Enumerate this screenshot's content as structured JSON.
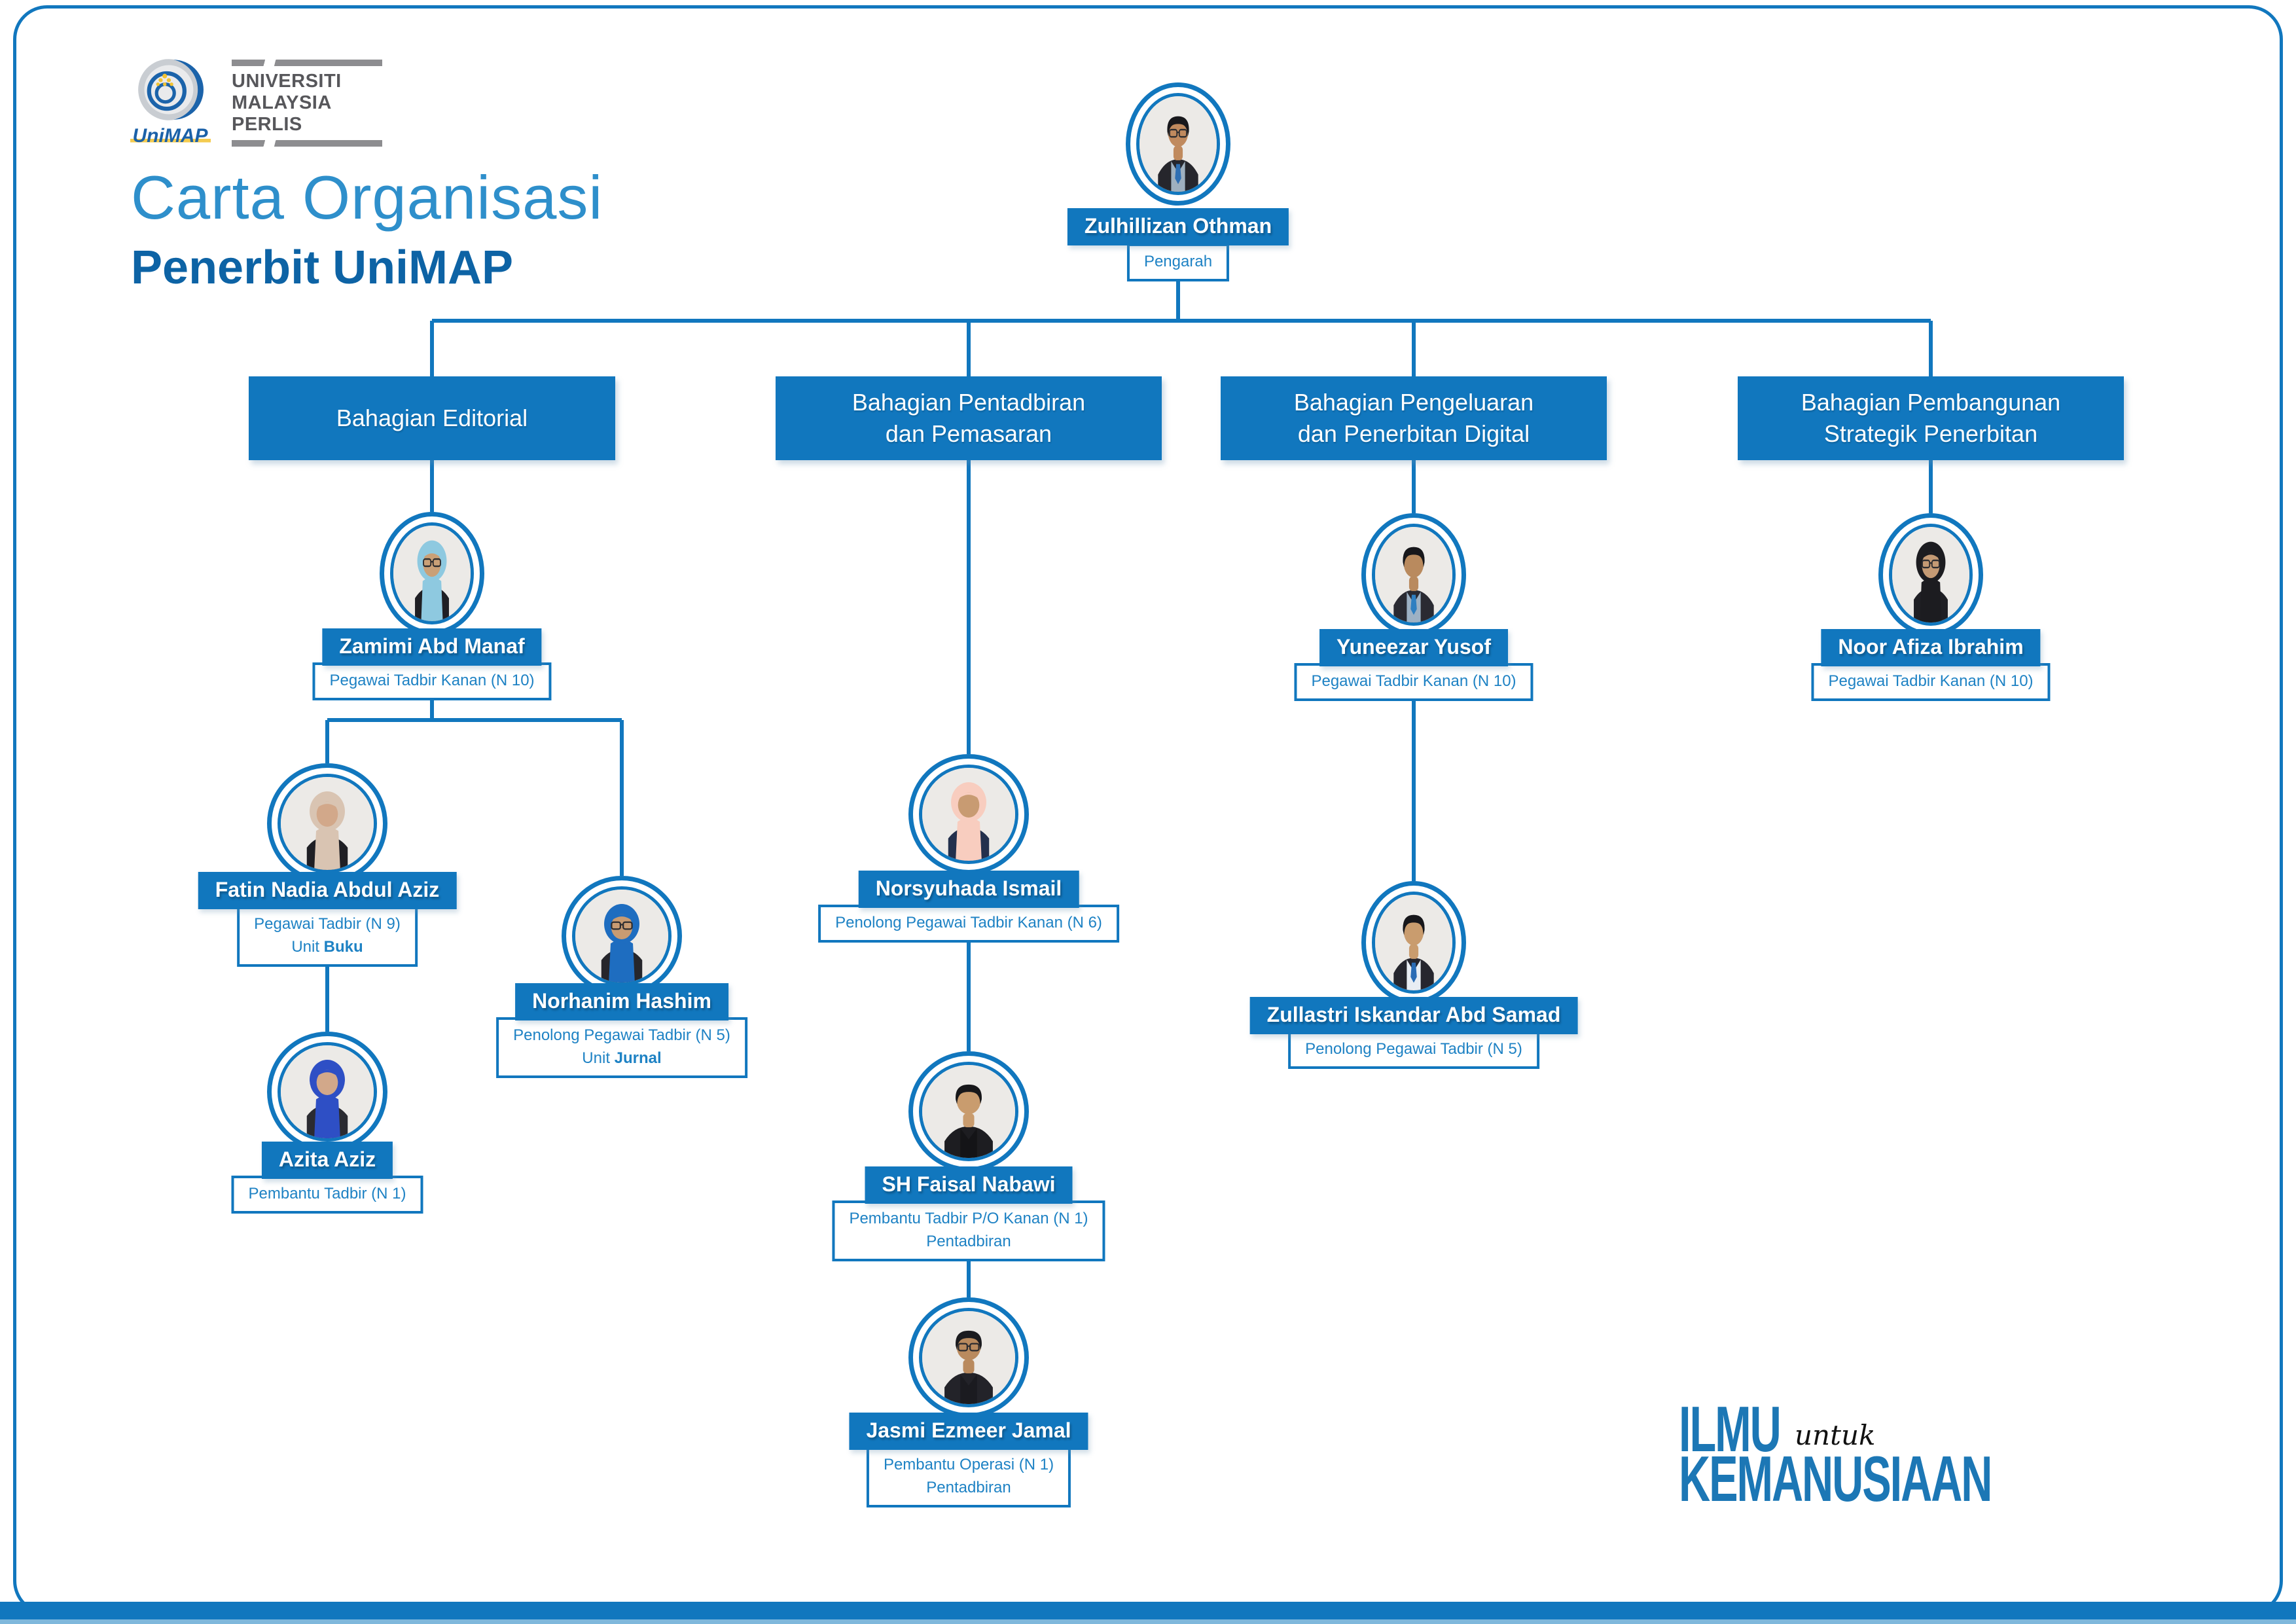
{
  "theme": {
    "blue": "#1177BE",
    "roletext": "#1E82C4",
    "title1": "#2E8FCB",
    "title2": "#0D63A5",
    "tagline": "#1C77B5",
    "logogray": "#57575B"
  },
  "logo": {
    "brand": "UniMAP",
    "line1": "UNIVERSITI",
    "line2": "MALAYSIA",
    "line3": "PERLIS"
  },
  "header": {
    "title": "Carta Organisasi",
    "subtitle": "Penerbit UniMAP"
  },
  "org": {
    "root": {
      "name": "Zulhillizan Othman",
      "role": "Pengarah",
      "avatar": {
        "kind": "man",
        "glasses": true,
        "skin": "#c08a5e",
        "hair": "#18181c",
        "suit": "#26262c",
        "shirt": "#9fb0bf",
        "tie": "#2f6fb3"
      }
    },
    "departments": [
      {
        "line1": "Bahagian Editorial",
        "line2": ""
      },
      {
        "line1": "Bahagian Pentadbiran",
        "line2": "dan Pemasaran"
      },
      {
        "line1": "Bahagian Pengeluaran",
        "line2": "dan Penerbitan Digital"
      },
      {
        "line1": "Bahagian Pembangunan",
        "line2": "Strategik Penerbitan"
      }
    ],
    "people": {
      "zamimi": {
        "name": "Zamimi Abd Manaf",
        "role": "Pegawai Tadbir Kanan (N 10)",
        "avatar": {
          "kind": "hijab",
          "hijab": "#8ec9e0",
          "glasses": true,
          "skin": "#caa077",
          "suit": "#1f1f24"
        }
      },
      "fatin": {
        "name": "Fatin Nadia Abdul Aziz",
        "role": "Pegawai Tadbir (N 9)",
        "unit_prefix": "Unit ",
        "unit": "Buku",
        "avatar": {
          "kind": "hijab",
          "hijab": "#d9c4b2",
          "glasses": false,
          "skin": "#d2a88a",
          "suit": "#1f1f24"
        }
      },
      "norhanim": {
        "name": "Norhanim Hashim",
        "role": "Penolong Pegawai Tadbir (N 5)",
        "unit_prefix": "Unit ",
        "unit": "Jurnal",
        "avatar": {
          "kind": "hijab",
          "hijab": "#1e6dc0",
          "glasses": true,
          "skin": "#c89b72",
          "suit": "#26262b"
        }
      },
      "azita": {
        "name": "Azita Aziz",
        "role": "Pembantu Tadbir (N 1)",
        "avatar": {
          "kind": "hijab",
          "hijab": "#2e4fc5",
          "glasses": false,
          "skin": "#d2a88a",
          "suit": "#2b2b31"
        }
      },
      "norsyuhada": {
        "name": "Norsyuhada Ismail",
        "role": "Penolong Pegawai Tadbir Kanan (N 6)",
        "avatar": {
          "kind": "hijab",
          "hijab": "#f8cdbf",
          "glasses": false,
          "skin": "#c89b72",
          "suit": "#23304d"
        }
      },
      "faisal": {
        "name": "SH Faisal Nabawi",
        "role": "Pembantu Tadbir P/O Kanan (N 1)",
        "role2": "Pentadbiran",
        "avatar": {
          "kind": "man",
          "glasses": false,
          "skin": "#c99c6e",
          "hair": "#17171a",
          "suit": "#1d1d21",
          "shirt": "#141417"
        }
      },
      "jasmi": {
        "name": "Jasmi Ezmeer Jamal",
        "role": "Pembantu Operasi (N 1)",
        "role2": "Pentadbiran",
        "avatar": {
          "kind": "man",
          "glasses": true,
          "skin": "#b98a5e",
          "hair": "#1b1b1f",
          "suit": "#232329",
          "shirt": "#1b1b20"
        }
      },
      "yuneezar": {
        "name": "Yuneezar Yusof",
        "role": "Pegawai Tadbir Kanan (N 10)",
        "avatar": {
          "kind": "man",
          "glasses": false,
          "skin": "#b98a5e",
          "hair": "#17171b",
          "suit": "#2a2a32",
          "shirt": "#9db1c4",
          "tie": "#2f7fc1"
        }
      },
      "zullastri": {
        "name": "Zullastri Iskandar Abd Samad",
        "role": "Penolong Pegawai Tadbir (N 5)",
        "avatar": {
          "kind": "man",
          "glasses": false,
          "skin": "#c99c6e",
          "hair": "#17171b",
          "suit": "#26262e",
          "shirt": "#e8edf3",
          "tie": "#2a6cb5"
        }
      },
      "noorafiza": {
        "name": "Noor Afiza Ibrahim",
        "role": "Pegawai Tadbir Kanan (N 10)",
        "avatar": {
          "kind": "hijab",
          "hijab": "#1c1c20",
          "glasses": true,
          "skin": "#c49a74",
          "suit": "#1f1f24"
        }
      }
    }
  },
  "footer": {
    "word1": "ILMU",
    "word2": "untuk",
    "word3": "KEMANUSIAAN"
  }
}
